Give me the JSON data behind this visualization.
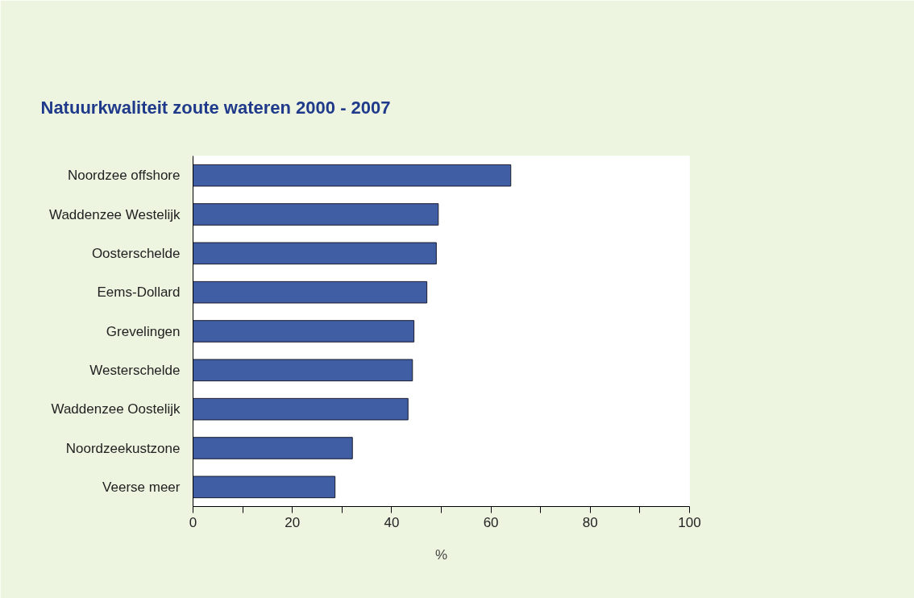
{
  "chart_data": {
    "type": "bar",
    "orientation": "horizontal",
    "title": "Natuurkwaliteit zoute wateren 2000 - 2007",
    "xlabel": "%",
    "categories": [
      "Noordzee offshore",
      "Waddenzee Westelijk",
      "Oosterschelde",
      "Eems-Dollard",
      "Grevelingen",
      "Westerschelde",
      "Waddenzee Oostelijk",
      "Noordzeekustzone",
      "Veerse meer"
    ],
    "values": [
      64.0,
      49.4,
      49.0,
      47.1,
      44.5,
      44.2,
      43.3,
      32.1,
      28.6
    ],
    "color": "#3f5ea4",
    "xlim": [
      0,
      100
    ],
    "xticks": [
      0,
      {
        "value": 10,
        "label": null
      },
      20,
      {
        "value": 30,
        "label": null
      },
      40,
      {
        "value": 50,
        "label": null
      },
      60,
      {
        "value": 70,
        "label": null
      },
      80,
      {
        "value": 90,
        "label": null
      },
      100
    ],
    "grid": false
  }
}
